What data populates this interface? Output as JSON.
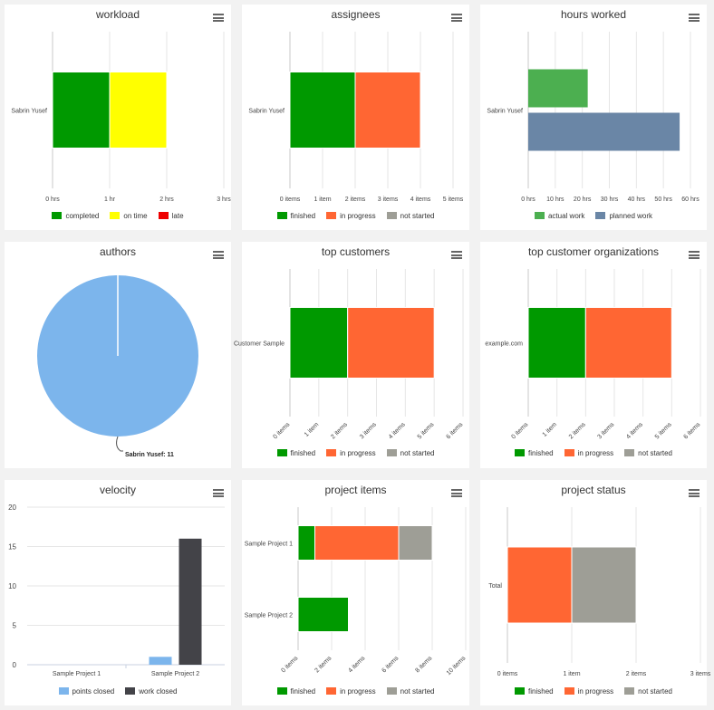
{
  "colors": {
    "green": "#009900",
    "yellow": "#ffff00",
    "red": "#ee0000",
    "orange": "#ff6633",
    "gray": "#9e9e96",
    "light_green": "#4caf50",
    "slate": "#6a86a6",
    "light_blue": "#7cb5ec",
    "dark": "#434348"
  },
  "panels": [
    {
      "id": "workload",
      "title": "workload",
      "menu_icon": "hamburger-menu-icon"
    },
    {
      "id": "assignees",
      "title": "assignees",
      "menu_icon": "hamburger-menu-icon"
    },
    {
      "id": "hours",
      "title": "hours worked",
      "menu_icon": "hamburger-menu-icon"
    },
    {
      "id": "authors",
      "title": "authors",
      "menu_icon": "hamburger-menu-icon"
    },
    {
      "id": "topcust",
      "title": "top customers",
      "menu_icon": "hamburger-menu-icon"
    },
    {
      "id": "toporg",
      "title": "top customer organizations",
      "menu_icon": "hamburger-menu-icon"
    },
    {
      "id": "velocity",
      "title": "velocity",
      "menu_icon": "hamburger-menu-icon"
    },
    {
      "id": "projitems",
      "title": "project items",
      "menu_icon": "hamburger-menu-icon"
    },
    {
      "id": "projstatus",
      "title": "project status",
      "menu_icon": "hamburger-menu-icon"
    }
  ],
  "chart_data": [
    {
      "type": "bar",
      "orientation": "horizontal",
      "stacked": true,
      "title": "workload",
      "categories": [
        "Sabrin Yusef"
      ],
      "xlim": [
        0,
        3
      ],
      "xticks": [
        "0 hrs",
        "1 hr",
        "2 hrs",
        "3 hrs"
      ],
      "series": [
        {
          "name": "completed",
          "values": [
            1
          ]
        },
        {
          "name": "on time",
          "values": [
            1
          ]
        },
        {
          "name": "late",
          "values": [
            0
          ]
        }
      ]
    },
    {
      "type": "bar",
      "orientation": "horizontal",
      "stacked": true,
      "title": "assignees",
      "categories": [
        "Sabrin Yusef"
      ],
      "xlim": [
        0,
        5
      ],
      "xticks": [
        "0 items",
        "1 item",
        "2 items",
        "3 items",
        "4 items",
        "5 items"
      ],
      "series": [
        {
          "name": "finished",
          "values": [
            2
          ]
        },
        {
          "name": "in progress",
          "values": [
            2
          ]
        },
        {
          "name": "not started",
          "values": [
            0
          ]
        }
      ]
    },
    {
      "type": "bar",
      "orientation": "horizontal",
      "stacked": false,
      "title": "hours worked",
      "categories": [
        "Sabrin Yusef"
      ],
      "xlim": [
        0,
        60
      ],
      "xticks": [
        "0 hrs",
        "10 hrs",
        "20 hrs",
        "30 hrs",
        "40 hrs",
        "50 hrs",
        "60 hrs"
      ],
      "series": [
        {
          "name": "actual work",
          "values": [
            22
          ]
        },
        {
          "name": "planned work",
          "values": [
            56
          ]
        }
      ]
    },
    {
      "type": "pie",
      "title": "authors",
      "slices": [
        {
          "name": "Sabrin Yusef",
          "value": 11
        }
      ],
      "data_label": "Sabrin Yusef: 11"
    },
    {
      "type": "bar",
      "orientation": "horizontal",
      "stacked": true,
      "title": "top customers",
      "categories": [
        "Customer Sample"
      ],
      "xlim": [
        0,
        6
      ],
      "xticks": [
        "0 items",
        "1 item",
        "2 items",
        "3 items",
        "4 items",
        "5 items",
        "6 items"
      ],
      "series": [
        {
          "name": "finished",
          "values": [
            2
          ]
        },
        {
          "name": "in progress",
          "values": [
            3
          ]
        },
        {
          "name": "not started",
          "values": [
            0
          ]
        }
      ]
    },
    {
      "type": "bar",
      "orientation": "horizontal",
      "stacked": true,
      "title": "top customer organizations",
      "categories": [
        "example.com"
      ],
      "xlim": [
        0,
        6
      ],
      "xticks": [
        "0 items",
        "1 item",
        "2 items",
        "3 items",
        "4 items",
        "5 items",
        "6 items"
      ],
      "series": [
        {
          "name": "finished",
          "values": [
            2
          ]
        },
        {
          "name": "in progress",
          "values": [
            3
          ]
        },
        {
          "name": "not started",
          "values": [
            0
          ]
        }
      ]
    },
    {
      "type": "bar",
      "orientation": "vertical",
      "stacked": false,
      "title": "velocity",
      "categories": [
        "Sample Project 1",
        "Sample Project 2"
      ],
      "ylim": [
        0,
        20
      ],
      "yticks": [
        "0",
        "5",
        "10",
        "15",
        "20"
      ],
      "series": [
        {
          "name": "points closed",
          "values": [
            0,
            1
          ]
        },
        {
          "name": "work closed",
          "values": [
            0,
            16
          ]
        }
      ]
    },
    {
      "type": "bar",
      "orientation": "horizontal",
      "stacked": true,
      "title": "project items",
      "categories": [
        "Sample Project 1",
        "Sample Project 2"
      ],
      "xlim": [
        0,
        10
      ],
      "xticks": [
        "0 items",
        "2 items",
        "4 items",
        "6 items",
        "8 items",
        "10 items"
      ],
      "series": [
        {
          "name": "finished",
          "values": [
            1,
            3
          ]
        },
        {
          "name": "in progress",
          "values": [
            5,
            0
          ]
        },
        {
          "name": "not started",
          "values": [
            2,
            0
          ]
        }
      ]
    },
    {
      "type": "bar",
      "orientation": "horizontal",
      "stacked": true,
      "title": "project status",
      "categories": [
        "Total"
      ],
      "xlim": [
        0,
        3
      ],
      "xticks": [
        "0 items",
        "1 item",
        "2 items",
        "3 items"
      ],
      "series": [
        {
          "name": "finished",
          "values": [
            0
          ]
        },
        {
          "name": "in progress",
          "values": [
            1
          ]
        },
        {
          "name": "not started",
          "values": [
            1
          ]
        }
      ]
    }
  ]
}
